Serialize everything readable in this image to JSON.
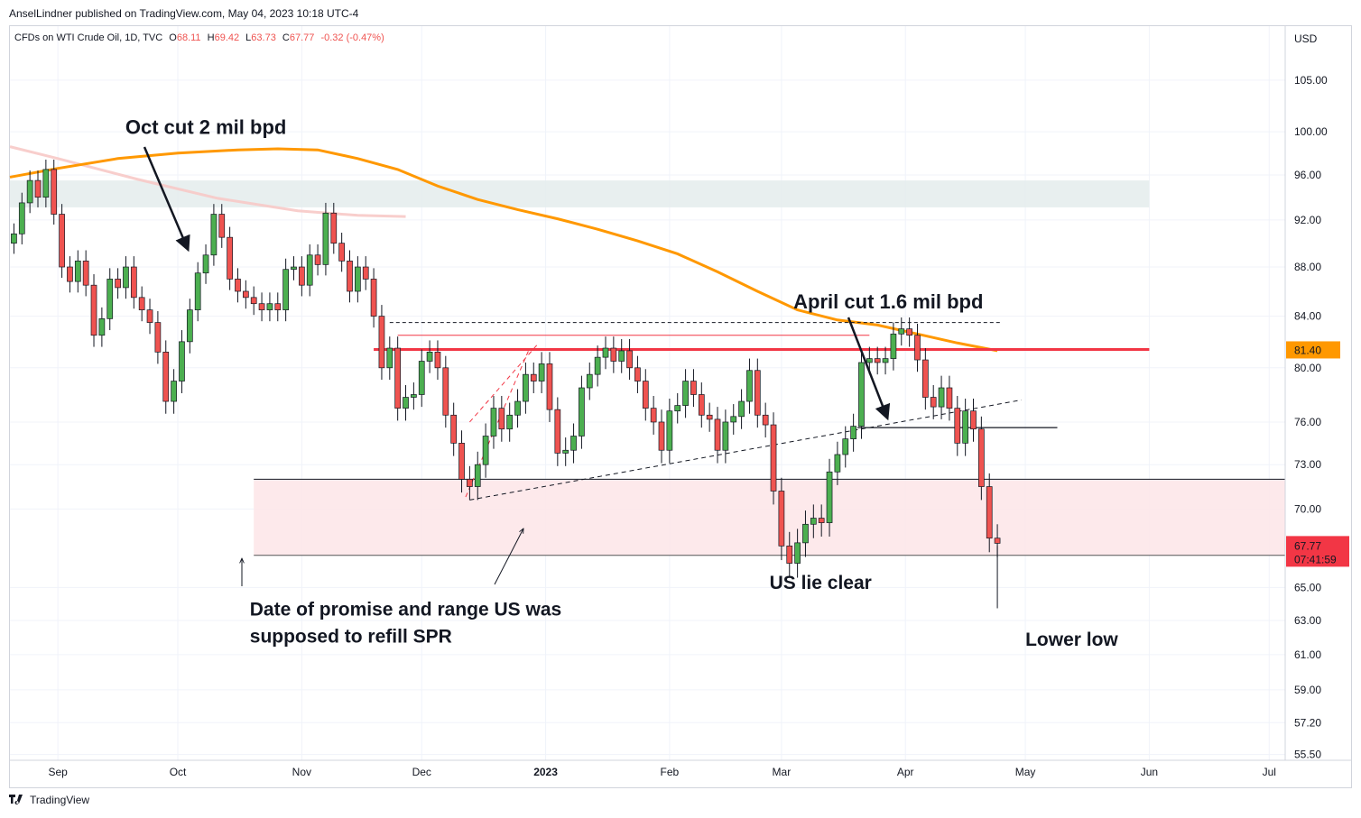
{
  "header": {
    "publisher": "AnselLindner published on TradingView.com, May 04, 2023 10:18 UTC-4"
  },
  "legend": {
    "symbol": "CFDs on WTI Crude Oil, 1D, TVC",
    "open_label": "O",
    "open": "68.11",
    "high_label": "H",
    "high": "69.42",
    "low_label": "L",
    "low": "63.73",
    "close_label": "C",
    "close": "67.77",
    "change": "-0.32 (-0.47%)"
  },
  "footer": {
    "brand": "TradingView"
  },
  "colors": {
    "up": "#4caf50",
    "down": "#ef5350",
    "ma": "#ff9800",
    "resistance": "#f23645",
    "zone_pink": "#fde7e9",
    "zone_grey": "#e4ecec"
  },
  "chart_data": {
    "type": "candlestick",
    "title": "CFDs on WTI Crude Oil, 1D, TVC",
    "currency": "USD",
    "y_ticks": [
      105,
      100,
      96,
      92,
      88,
      84,
      80,
      76,
      73,
      70,
      65,
      63,
      61,
      59,
      57.2,
      55.5
    ],
    "y_tick_labels": [
      "105.00",
      "100.00",
      "96.00",
      "92.00",
      "88.00",
      "84.00",
      "80.00",
      "76.00",
      "73.00",
      "70.00",
      "65.00",
      "63.00",
      "61.00",
      "59.00",
      "57.20",
      "55.50"
    ],
    "x_labels": [
      {
        "label": "Sep",
        "day": 0
      },
      {
        "label": "Oct",
        "day": 30
      },
      {
        "label": "Nov",
        "day": 61
      },
      {
        "label": "Dec",
        "day": 91
      },
      {
        "label": "2023",
        "day": 122
      },
      {
        "label": "Feb",
        "day": 153
      },
      {
        "label": "Mar",
        "day": 181
      },
      {
        "label": "Apr",
        "day": 212
      },
      {
        "label": "May",
        "day": 242
      },
      {
        "label": "Jun",
        "day": 273
      },
      {
        "label": "Jul",
        "day": 303
      }
    ],
    "x_range_days": [
      -12,
      307
    ],
    "y_range": [
      55.2,
      110.5
    ],
    "last_price": "67.77",
    "countdown": "07:41:59",
    "level_marker": "81.40",
    "closes": [
      {
        "d": -11,
        "c": 90.8
      },
      {
        "d": -9,
        "c": 93.5
      },
      {
        "d": -7,
        "c": 95.5
      },
      {
        "d": -5,
        "c": 94.0
      },
      {
        "d": -3,
        "c": 96.5
      },
      {
        "d": -1,
        "c": 92.5
      },
      {
        "d": 1,
        "c": 88.0
      },
      {
        "d": 3,
        "c": 86.8
      },
      {
        "d": 5,
        "c": 88.5
      },
      {
        "d": 7,
        "c": 86.5
      },
      {
        "d": 9,
        "c": 82.5
      },
      {
        "d": 11,
        "c": 83.8
      },
      {
        "d": 13,
        "c": 87.0
      },
      {
        "d": 15,
        "c": 86.3
      },
      {
        "d": 17,
        "c": 88.0
      },
      {
        "d": 19,
        "c": 85.5
      },
      {
        "d": 21,
        "c": 84.5
      },
      {
        "d": 23,
        "c": 83.5
      },
      {
        "d": 25,
        "c": 81.2
      },
      {
        "d": 27,
        "c": 77.5
      },
      {
        "d": 29,
        "c": 79.0
      },
      {
        "d": 31,
        "c": 82.0
      },
      {
        "d": 33,
        "c": 84.5
      },
      {
        "d": 35,
        "c": 87.5
      },
      {
        "d": 37,
        "c": 89.0
      },
      {
        "d": 39,
        "c": 92.5
      },
      {
        "d": 41,
        "c": 90.5
      },
      {
        "d": 43,
        "c": 87.0
      },
      {
        "d": 45,
        "c": 86.0
      },
      {
        "d": 47,
        "c": 85.5
      },
      {
        "d": 49,
        "c": 85.0
      },
      {
        "d": 51,
        "c": 84.5
      },
      {
        "d": 53,
        "c": 85.0
      },
      {
        "d": 55,
        "c": 84.5
      },
      {
        "d": 57,
        "c": 87.8
      },
      {
        "d": 59,
        "c": 88.0
      },
      {
        "d": 61,
        "c": 86.5
      },
      {
        "d": 63,
        "c": 89.0
      },
      {
        "d": 65,
        "c": 88.2
      },
      {
        "d": 67,
        "c": 92.6
      },
      {
        "d": 69,
        "c": 90.0
      },
      {
        "d": 71,
        "c": 88.5
      },
      {
        "d": 73,
        "c": 86.0
      },
      {
        "d": 75,
        "c": 88.0
      },
      {
        "d": 77,
        "c": 87.0
      },
      {
        "d": 79,
        "c": 84.0
      },
      {
        "d": 81,
        "c": 80.0
      },
      {
        "d": 83,
        "c": 81.5
      },
      {
        "d": 85,
        "c": 77.0
      },
      {
        "d": 87,
        "c": 77.8
      },
      {
        "d": 89,
        "c": 78.0
      },
      {
        "d": 91,
        "c": 80.5
      },
      {
        "d": 93,
        "c": 81.2
      },
      {
        "d": 95,
        "c": 80.0
      },
      {
        "d": 97,
        "c": 76.5
      },
      {
        "d": 99,
        "c": 74.5
      },
      {
        "d": 101,
        "c": 72.0
      },
      {
        "d": 103,
        "c": 71.5
      },
      {
        "d": 105,
        "c": 73.0
      },
      {
        "d": 107,
        "c": 75.0
      },
      {
        "d": 109,
        "c": 77.0
      },
      {
        "d": 111,
        "c": 75.5
      },
      {
        "d": 113,
        "c": 76.5
      },
      {
        "d": 115,
        "c": 77.5
      },
      {
        "d": 117,
        "c": 79.5
      },
      {
        "d": 119,
        "c": 79.0
      },
      {
        "d": 121,
        "c": 80.3
      },
      {
        "d": 123,
        "c": 76.9
      },
      {
        "d": 125,
        "c": 73.8
      },
      {
        "d": 127,
        "c": 74.0
      },
      {
        "d": 129,
        "c": 75.0
      },
      {
        "d": 131,
        "c": 78.5
      },
      {
        "d": 133,
        "c": 79.5
      },
      {
        "d": 135,
        "c": 80.8
      },
      {
        "d": 137,
        "c": 81.5
      },
      {
        "d": 139,
        "c": 80.5
      },
      {
        "d": 141,
        "c": 81.3
      },
      {
        "d": 143,
        "c": 80.0
      },
      {
        "d": 145,
        "c": 79.0
      },
      {
        "d": 147,
        "c": 77.0
      },
      {
        "d": 149,
        "c": 76.0
      },
      {
        "d": 151,
        "c": 74.0
      },
      {
        "d": 153,
        "c": 76.8
      },
      {
        "d": 155,
        "c": 77.2
      },
      {
        "d": 157,
        "c": 79.0
      },
      {
        "d": 159,
        "c": 78.0
      },
      {
        "d": 161,
        "c": 76.5
      },
      {
        "d": 163,
        "c": 76.2
      },
      {
        "d": 165,
        "c": 74.0
      },
      {
        "d": 167,
        "c": 76.0
      },
      {
        "d": 169,
        "c": 76.4
      },
      {
        "d": 171,
        "c": 77.5
      },
      {
        "d": 173,
        "c": 79.8
      },
      {
        "d": 175,
        "c": 76.5
      },
      {
        "d": 177,
        "c": 75.8
      },
      {
        "d": 179,
        "c": 71.2
      },
      {
        "d": 181,
        "c": 67.6
      },
      {
        "d": 183,
        "c": 66.5
      },
      {
        "d": 185,
        "c": 67.8
      },
      {
        "d": 187,
        "c": 69.0
      },
      {
        "d": 189,
        "c": 69.4
      },
      {
        "d": 191,
        "c": 69.1
      },
      {
        "d": 193,
        "c": 72.5
      },
      {
        "d": 195,
        "c": 73.7
      },
      {
        "d": 197,
        "c": 74.8
      },
      {
        "d": 199,
        "c": 75.7
      },
      {
        "d": 201,
        "c": 80.4
      },
      {
        "d": 203,
        "c": 80.7
      },
      {
        "d": 205,
        "c": 80.4
      },
      {
        "d": 207,
        "c": 80.7
      },
      {
        "d": 209,
        "c": 82.6
      },
      {
        "d": 211,
        "c": 83.0
      },
      {
        "d": 213,
        "c": 82.5
      },
      {
        "d": 215,
        "c": 80.6
      },
      {
        "d": 217,
        "c": 77.8
      },
      {
        "d": 219,
        "c": 77.1
      },
      {
        "d": 221,
        "c": 78.5
      },
      {
        "d": 223,
        "c": 77.0
      },
      {
        "d": 225,
        "c": 74.5
      },
      {
        "d": 227,
        "c": 76.8
      },
      {
        "d": 229,
        "c": 75.5
      },
      {
        "d": 231,
        "c": 71.5
      },
      {
        "d": 233,
        "c": 68.1
      },
      {
        "d": 235,
        "c": 67.77
      }
    ],
    "ma_200": [
      {
        "d": -12,
        "v": 95.8
      },
      {
        "d": 0,
        "v": 96.6
      },
      {
        "d": 15,
        "v": 97.5
      },
      {
        "d": 30,
        "v": 98.0
      },
      {
        "d": 45,
        "v": 98.3
      },
      {
        "d": 55,
        "v": 98.4
      },
      {
        "d": 65,
        "v": 98.3
      },
      {
        "d": 75,
        "v": 97.5
      },
      {
        "d": 85,
        "v": 96.5
      },
      {
        "d": 95,
        "v": 95.0
      },
      {
        "d": 105,
        "v": 93.8
      },
      {
        "d": 115,
        "v": 92.9
      },
      {
        "d": 125,
        "v": 92.1
      },
      {
        "d": 135,
        "v": 91.2
      },
      {
        "d": 145,
        "v": 90.2
      },
      {
        "d": 155,
        "v": 89.1
      },
      {
        "d": 165,
        "v": 87.6
      },
      {
        "d": 175,
        "v": 86.0
      },
      {
        "d": 185,
        "v": 84.5
      },
      {
        "d": 195,
        "v": 83.7
      },
      {
        "d": 205,
        "v": 83.3
      },
      {
        "d": 215,
        "v": 82.6
      },
      {
        "d": 225,
        "v": 81.9
      },
      {
        "d": 235,
        "v": 81.3
      }
    ],
    "ma_faded": [
      {
        "d": -12,
        "v": 98.6
      },
      {
        "d": 0,
        "v": 97.5
      },
      {
        "d": 20,
        "v": 95.6
      },
      {
        "d": 40,
        "v": 93.9
      },
      {
        "d": 60,
        "v": 92.8
      },
      {
        "d": 75,
        "v": 92.4
      },
      {
        "d": 87,
        "v": 92.3
      }
    ],
    "zones": [
      {
        "name": "Resistance zone",
        "y_top": 95.5,
        "y_bottom": 93.1,
        "x_start": -12,
        "x_end": 273
      },
      {
        "name": "SPR refill range",
        "y_top": 72.0,
        "y_bottom": 67.0,
        "x_start": 49,
        "x_end": 307
      }
    ],
    "levels": [
      {
        "name": "81.40 resistance",
        "y": 81.4,
        "x_start": 79,
        "x_end": 273
      },
      {
        "name": "Top dashed",
        "y": 83.5,
        "x_start": 83,
        "x_end": 236
      },
      {
        "name": "Channel top",
        "y": 82.5,
        "x_start": 85,
        "x_end": 203
      },
      {
        "name": "Range top",
        "y": 72.0,
        "x_start": 49,
        "x_end": 307
      },
      {
        "name": "Range bottom",
        "y": 67.0,
        "x_start": 49,
        "x_end": 307
      },
      {
        "name": "Recent low shelf",
        "y": 75.6,
        "x_start": 200,
        "x_end": 250
      }
    ],
    "annotations": [
      {
        "text": "Oct cut 2 mil bpd",
        "d": 18,
        "y": 99.8
      },
      {
        "text": "April cut 1.6 mil bpd",
        "d": 184,
        "y": 84.6
      },
      {
        "text": "US lie clear",
        "d": 178,
        "y": 64.9
      },
      {
        "text": "Date of promise and range US was",
        "d": 48,
        "y": 63.3
      },
      {
        "text": "supposed to refill SPR",
        "d": 48,
        "y": 61.7
      },
      {
        "text": "Lower low",
        "d": 242,
        "y": 61.5
      }
    ]
  }
}
